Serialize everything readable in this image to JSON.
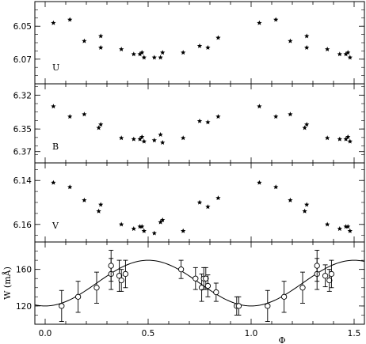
{
  "chart_data": [
    {
      "type": "scatter",
      "panel_label": "U",
      "ylim": [
        6.085,
        6.035
      ],
      "y_reversed": true,
      "yticks": [
        6.05,
        6.07
      ],
      "ytick_labels": [
        "6.05",
        "6.07"
      ],
      "xlim": [
        -0.05,
        1.55
      ],
      "points": [
        [
          0.04,
          6.048
        ],
        [
          0.12,
          6.046
        ],
        [
          0.19,
          6.059
        ],
        [
          0.27,
          6.056
        ],
        [
          0.27,
          6.063
        ],
        [
          0.37,
          6.064
        ],
        [
          0.43,
          6.067
        ],
        [
          0.46,
          6.067
        ],
        [
          0.47,
          6.066
        ],
        [
          0.48,
          6.069
        ],
        [
          0.53,
          6.069
        ],
        [
          0.56,
          6.069
        ],
        [
          0.57,
          6.066
        ],
        [
          0.67,
          6.066
        ],
        [
          0.75,
          6.062
        ],
        [
          0.79,
          6.063
        ],
        [
          0.84,
          6.057
        ],
        [
          1.04,
          6.048
        ],
        [
          1.12,
          6.046
        ],
        [
          1.19,
          6.059
        ],
        [
          1.27,
          6.056
        ],
        [
          1.27,
          6.063
        ],
        [
          1.37,
          6.064
        ],
        [
          1.43,
          6.067
        ],
        [
          1.46,
          6.067
        ],
        [
          1.47,
          6.066
        ],
        [
          1.48,
          6.069
        ]
      ]
    },
    {
      "type": "scatter",
      "panel_label": "B",
      "ylim": [
        6.38,
        6.31
      ],
      "y_reversed": true,
      "yticks": [
        6.32,
        6.35,
        6.37
      ],
      "ytick_labels": [
        "6.32",
        "6.35",
        "6.37"
      ],
      "xlim": [
        -0.05,
        1.55
      ],
      "points": [
        [
          0.04,
          6.33
        ],
        [
          0.12,
          6.339
        ],
        [
          0.19,
          6.337
        ],
        [
          0.26,
          6.349
        ],
        [
          0.27,
          6.346
        ],
        [
          0.37,
          6.358
        ],
        [
          0.43,
          6.359
        ],
        [
          0.46,
          6.359
        ],
        [
          0.47,
          6.357
        ],
        [
          0.48,
          6.361
        ],
        [
          0.53,
          6.36
        ],
        [
          0.56,
          6.355
        ],
        [
          0.57,
          6.362
        ],
        [
          0.67,
          6.358
        ],
        [
          0.75,
          6.343
        ],
        [
          0.79,
          6.344
        ],
        [
          0.84,
          6.339
        ],
        [
          1.04,
          6.33
        ],
        [
          1.12,
          6.339
        ],
        [
          1.19,
          6.337
        ],
        [
          1.26,
          6.349
        ],
        [
          1.27,
          6.346
        ],
        [
          1.37,
          6.358
        ],
        [
          1.43,
          6.359
        ],
        [
          1.46,
          6.359
        ],
        [
          1.47,
          6.357
        ],
        [
          1.48,
          6.361
        ]
      ]
    },
    {
      "type": "scatter",
      "panel_label": "V",
      "ylim": [
        6.168,
        6.132
      ],
      "y_reversed": true,
      "yticks": [
        6.14,
        6.16
      ],
      "ytick_labels": [
        "6.14",
        "6.16"
      ],
      "xlim": [
        -0.05,
        1.55
      ],
      "points": [
        [
          0.04,
          6.141
        ],
        [
          0.12,
          6.143
        ],
        [
          0.19,
          6.149
        ],
        [
          0.26,
          6.154
        ],
        [
          0.27,
          6.151
        ],
        [
          0.37,
          6.16
        ],
        [
          0.43,
          6.162
        ],
        [
          0.46,
          6.161
        ],
        [
          0.47,
          6.161
        ],
        [
          0.48,
          6.163
        ],
        [
          0.53,
          6.164
        ],
        [
          0.56,
          6.159
        ],
        [
          0.57,
          6.158
        ],
        [
          0.67,
          6.163
        ],
        [
          0.75,
          6.15
        ],
        [
          0.79,
          6.152
        ],
        [
          0.84,
          6.148
        ],
        [
          1.04,
          6.141
        ],
        [
          1.12,
          6.143
        ],
        [
          1.19,
          6.149
        ],
        [
          1.26,
          6.154
        ],
        [
          1.27,
          6.151
        ],
        [
          1.37,
          6.16
        ],
        [
          1.43,
          6.162
        ],
        [
          1.46,
          6.161
        ],
        [
          1.47,
          6.161
        ],
        [
          1.48,
          6.163
        ]
      ]
    },
    {
      "type": "scatter",
      "ylabel": "W (mÅ)",
      "xlabel": "Φ",
      "ylim": [
        100,
        190
      ],
      "yticks": [
        120,
        160
      ],
      "ytick_labels": [
        "120",
        "160"
      ],
      "xlim": [
        -0.05,
        1.55
      ],
      "xticks": [
        0.0,
        0.5,
        1.0,
        1.5
      ],
      "xtick_labels": [
        "0.0",
        "0.5",
        "1.0",
        "1.5"
      ],
      "points": [
        {
          "x": 0.08,
          "y": 120,
          "err": 17
        },
        {
          "x": 0.16,
          "y": 130,
          "err": 17
        },
        {
          "x": 0.25,
          "y": 140,
          "err": 17
        },
        {
          "x": 0.32,
          "y": 155,
          "err": 17
        },
        {
          "x": 0.32,
          "y": 164,
          "err": 17
        },
        {
          "x": 0.36,
          "y": 153,
          "err": 17
        },
        {
          "x": 0.37,
          "y": 148,
          "err": 12
        },
        {
          "x": 0.39,
          "y": 155,
          "err": 15
        },
        {
          "x": 0.66,
          "y": 160,
          "err": 10
        },
        {
          "x": 0.73,
          "y": 150,
          "err": 12
        },
        {
          "x": 0.76,
          "y": 140,
          "err": 15
        },
        {
          "x": 0.77,
          "y": 150,
          "err": 12
        },
        {
          "x": 0.78,
          "y": 150,
          "err": 12
        },
        {
          "x": 0.79,
          "y": 142,
          "err": 12
        },
        {
          "x": 0.83,
          "y": 135,
          "err": 10
        },
        {
          "x": 0.93,
          "y": 120,
          "err": 10
        },
        {
          "x": 0.94,
          "y": 120,
          "err": 10
        },
        {
          "x": 1.08,
          "y": 120,
          "err": 17
        },
        {
          "x": 1.16,
          "y": 130,
          "err": 17
        },
        {
          "x": 1.25,
          "y": 140,
          "err": 17
        },
        {
          "x": 1.32,
          "y": 155,
          "err": 17
        },
        {
          "x": 1.32,
          "y": 164,
          "err": 17
        },
        {
          "x": 1.36,
          "y": 153,
          "err": 12
        },
        {
          "x": 1.38,
          "y": 148,
          "err": 12
        },
        {
          "x": 1.39,
          "y": 155,
          "err": 15
        }
      ],
      "fit_curve": {
        "mean": 145,
        "amplitude": 25,
        "peak_phase": 0.5,
        "period": 1.0
      }
    }
  ]
}
